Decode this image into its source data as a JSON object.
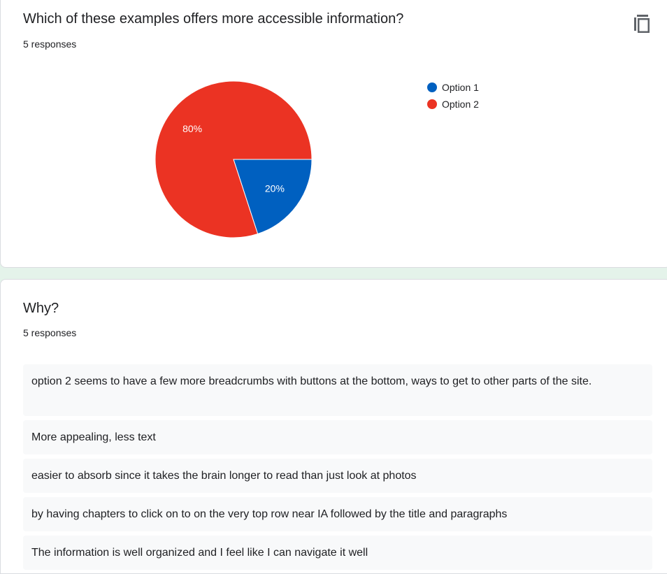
{
  "question1": {
    "title": "Which of these examples offers more accessible information?",
    "responses_count": "5 responses",
    "copy_icon": "copy-icon"
  },
  "chart_data": {
    "type": "pie",
    "categories": [
      "Option 1",
      "Option 2"
    ],
    "values": [
      20,
      80
    ],
    "labels": [
      "20%",
      "80%"
    ],
    "colors": [
      "#0060c0",
      "#eb3323"
    ],
    "legend": "top-right"
  },
  "question2": {
    "title": "Why?",
    "responses_count": "5 responses",
    "responses": [
      "option 2 seems to have a few more breadcrumbs with buttons at the bottom, ways to get to other parts of the site.",
      "More appealing, less text",
      "easier to absorb since it takes the brain longer to read than just look at photos",
      "by having chapters to click on to on the very top row near IA followed by the title and paragraphs",
      "The information is well organized and I feel like I can navigate it well"
    ]
  }
}
